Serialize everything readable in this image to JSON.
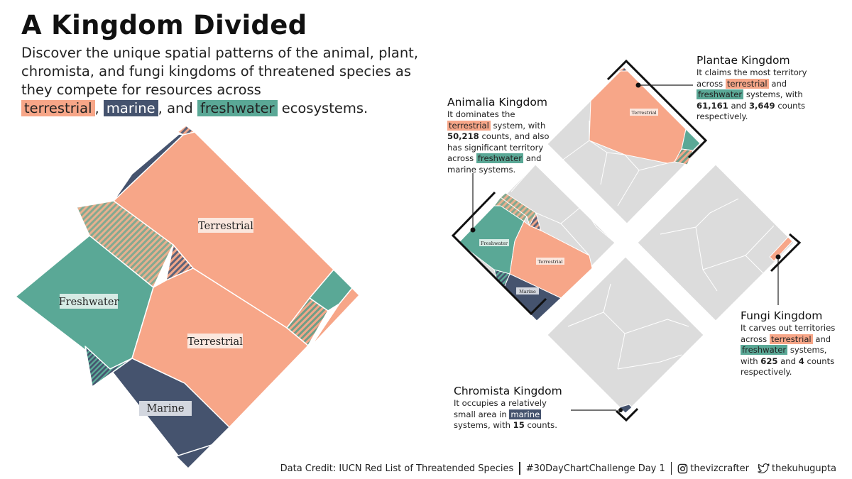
{
  "title": "A Kingdom Divided",
  "subtitle": {
    "line1": "Discover the unique spatial patterns of the animal, plant, chromista, and fungi kingdoms of threatened species as they compete for resources across",
    "terrestrial": "terrestrial",
    "comma": ",",
    "marine": "marine",
    "and": ", and",
    "freshwater": "freshwater",
    "end": "ecosystems."
  },
  "colors": {
    "terrestrial": "#f7a688",
    "marine": "#45536e",
    "freshwater": "#5aa896",
    "other": "#dddddd"
  },
  "chart_data": {
    "type": "voronoi treemap",
    "main_labels": {
      "terrestrial_large": "Terrestrial",
      "terrestrial_small": "Terrestrial",
      "freshwater": "Freshwater",
      "marine": "Marine"
    },
    "small_labels": {
      "plantae_terrestrial": "Terrestrial",
      "animalia_freshwater": "Freshwater",
      "animalia_terrestrial": "Terrestrial",
      "animalia_marine": "Marine"
    },
    "series": [
      {
        "kingdom": "Animalia",
        "system": "terrestrial",
        "counts": 50218
      },
      {
        "kingdom": "Plantae",
        "system": "terrestrial",
        "counts": 61161
      },
      {
        "kingdom": "Plantae",
        "system": "freshwater",
        "counts": 3649
      },
      {
        "kingdom": "Fungi",
        "system": "terrestrial",
        "counts": 625
      },
      {
        "kingdom": "Fungi",
        "system": "freshwater",
        "counts": 4
      },
      {
        "kingdom": "Chromista",
        "system": "marine",
        "counts": 15
      }
    ]
  },
  "annotations": {
    "plantae": {
      "title": "Plantae Kingdom",
      "p1": "It claims the most territory across",
      "hl1": "terrestrial",
      "p2": "and",
      "hl2": "freshwater",
      "p3": "systems, with",
      "n1": "61,161",
      "p4": "and",
      "n2": "3,649",
      "p5": "counts respectively."
    },
    "animalia": {
      "title": "Animalia Kingdom",
      "p1": "It dominates the",
      "hl1": "terrestrial",
      "p2": "system, with",
      "n1": "50,218",
      "p3": "counts, and also has significant territory across",
      "hl2": "freshwater",
      "p4": "and marine systems."
    },
    "fungi": {
      "title": "Fungi Kingdom",
      "p1": "It carves out territories across",
      "hl1": "terrestrial",
      "p2": "and",
      "hl2": "freshwater",
      "p3": "systems, with",
      "n1": "625",
      "p4": "and",
      "n2": "4",
      "p5": "counts respectively."
    },
    "chromista": {
      "title": "Chromista Kingdom",
      "p1": "It occupies a relatively small area in",
      "hl1": "marine",
      "p2": "systems, with",
      "n1": "15",
      "p3": "counts."
    }
  },
  "footer": {
    "credit": "Data Credit: IUCN Red List of Threatended Species",
    "challenge": "#30DayChartChallenge Day 1",
    "instagram": "thevizcrafter",
    "twitter": "thekuhugupta",
    "instagram_icon": "instagram-icon",
    "twitter_icon": "twitter-bird-icon"
  }
}
